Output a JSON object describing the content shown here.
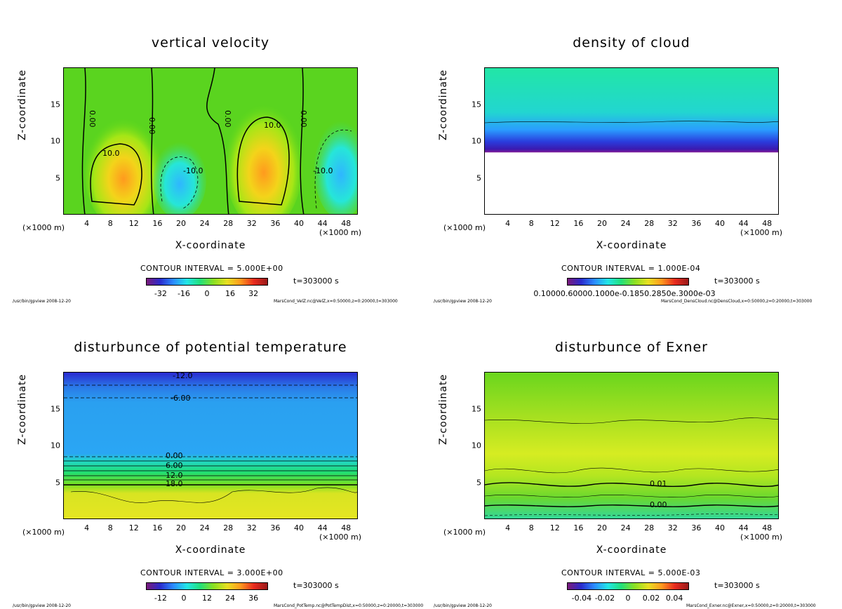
{
  "chart_data": [
    {
      "type": "heatmap",
      "title": "vertical velocity",
      "xlabel": "X-coordinate",
      "ylabel": "Z-coordinate",
      "x_unit_left": "(×1000 m)",
      "x_unit_right": "(×1000 m)",
      "xlim": [
        0,
        50
      ],
      "ylim": [
        0,
        20
      ],
      "xticks": [
        "4",
        "8",
        "12",
        "16",
        "20",
        "24",
        "28",
        "32",
        "36",
        "40",
        "44",
        "48"
      ],
      "yticks": [
        "5",
        "10",
        "15"
      ],
      "contour_interval": "CONTOUR INTERVAL = 5.000E+00",
      "time_label": "t=303000 s",
      "colorbar_ticks": [
        "-32",
        "-16",
        "0",
        "16",
        "32"
      ],
      "contour_labels": [
        "0.00",
        "0.00",
        "0.00",
        "0.00",
        "10.0",
        "10.0",
        "-10.0",
        "-10.0"
      ],
      "footer_left": "/usr/bin/gpview  2008-12-20",
      "footer_right": "MarsCond_VelZ.nc@VelZ,x=0:50000,z=0:20000,t=303000"
    },
    {
      "type": "heatmap",
      "title": "density of cloud",
      "xlabel": "X-coordinate",
      "ylabel": "Z-coordinate",
      "x_unit_left": "(×1000 m)",
      "x_unit_right": "(×1000 m)",
      "xlim": [
        0,
        50
      ],
      "ylim": [
        0,
        20
      ],
      "xticks": [
        "4",
        "8",
        "12",
        "16",
        "20",
        "24",
        "28",
        "32",
        "36",
        "40",
        "44",
        "48"
      ],
      "yticks": [
        "5",
        "10",
        "15"
      ],
      "contour_interval": "CONTOUR INTERVAL = 1.000E-04",
      "time_label": "t=303000 s",
      "colorbar_ticks_text": "0.10000.60000.1000e-0.1850.2850e.3000e-03",
      "footer_left": "/usr/bin/gpview  2008-12-20",
      "footer_right": "MarsCond_DensCloud.nc@DensCloud,x=0:50000,z=0:20000,t=303000"
    },
    {
      "type": "heatmap",
      "title": "disturbunce of potential temperature",
      "xlabel": "X-coordinate",
      "ylabel": "Z-coordinate",
      "x_unit_left": "(×1000 m)",
      "x_unit_right": "(×1000 m)",
      "xlim": [
        0,
        50
      ],
      "ylim": [
        0,
        20
      ],
      "xticks": [
        "4",
        "8",
        "12",
        "16",
        "20",
        "24",
        "28",
        "32",
        "36",
        "40",
        "44",
        "48"
      ],
      "yticks": [
        "5",
        "10",
        "15"
      ],
      "contour_interval": "CONTOUR INTERVAL = 3.000E+00",
      "time_label": "t=303000 s",
      "colorbar_ticks": [
        "-12",
        "0",
        "12",
        "24",
        "36"
      ],
      "contour_labels": [
        "-12.0",
        "-6.00",
        "0.00",
        "6.00",
        "12.0",
        "18.0"
      ],
      "footer_left": "/usr/bin/gpview  2008-12-20",
      "footer_right": "MarsCond_PotTemp.nc@PotTempDist,x=0:50000,z=0:20000,t=303000"
    },
    {
      "type": "heatmap",
      "title": "disturbunce of Exner",
      "xlabel": "X-coordinate",
      "ylabel": "Z-coordinate",
      "x_unit_left": "(×1000 m)",
      "x_unit_right": "(×1000 m)",
      "xlim": [
        0,
        50
      ],
      "ylim": [
        0,
        20
      ],
      "xticks": [
        "4",
        "8",
        "12",
        "16",
        "20",
        "24",
        "28",
        "32",
        "36",
        "40",
        "44",
        "48"
      ],
      "yticks": [
        "5",
        "10",
        "15"
      ],
      "contour_interval": "CONTOUR INTERVAL = 5.000E-03",
      "time_label": "t=303000 s",
      "colorbar_ticks": [
        "-0.04",
        "-0.02",
        "0",
        "0.02",
        "0.04"
      ],
      "contour_labels": [
        "0.01",
        "0.00"
      ],
      "footer_left": "/usr/bin/gpview  2008-12-20",
      "footer_right": "MarsCond_Exner.nc@Exner,x=0:50000,z=0:20000,t=303000"
    }
  ]
}
